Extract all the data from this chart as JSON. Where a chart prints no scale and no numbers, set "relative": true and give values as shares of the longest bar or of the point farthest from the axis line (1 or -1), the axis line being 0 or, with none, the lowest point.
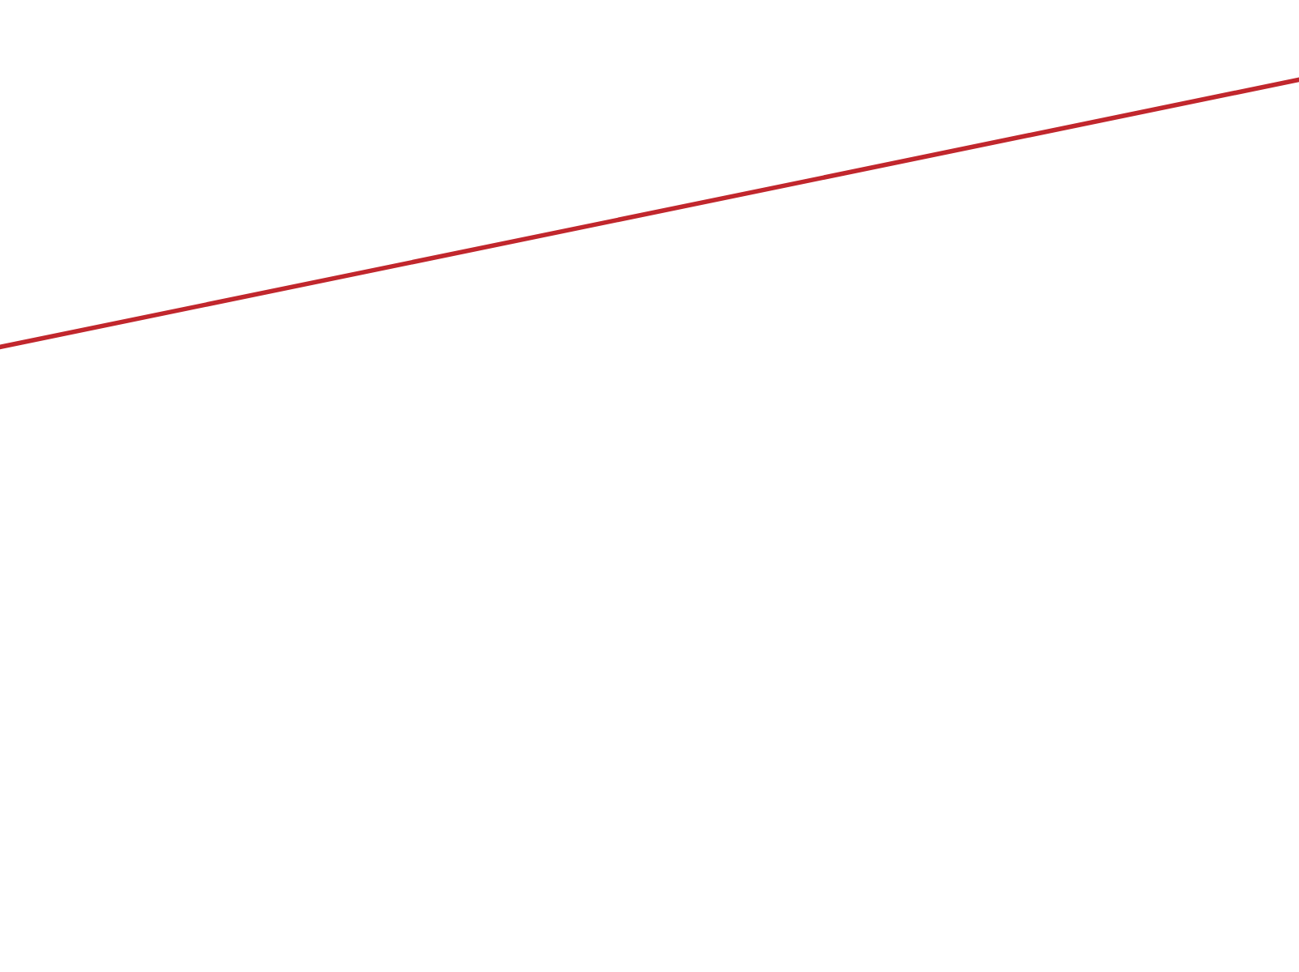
{
  "chart_data": {
    "type": "line",
    "relative": true,
    "categories": [
      null,
      null
    ],
    "series": [
      {
        "color": "#c1272d",
        "values": [
          0,
          1
        ]
      }
    ],
    "legend": false,
    "tick_labels": false,
    "marker": "none",
    "line_style": "solid"
  }
}
